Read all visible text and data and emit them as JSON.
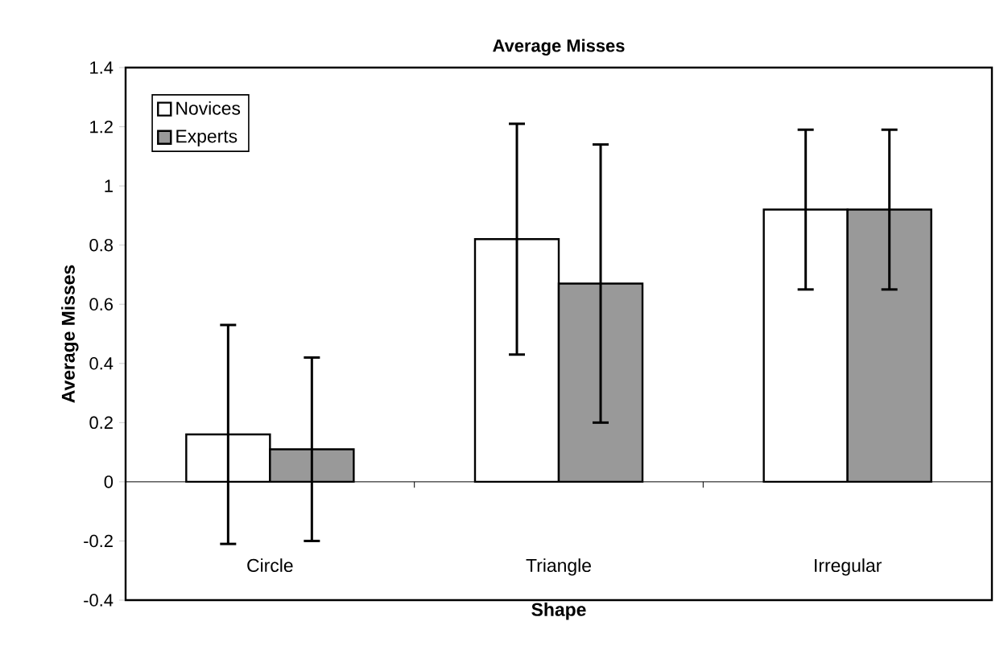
{
  "chart_data": {
    "type": "bar",
    "title": "Average Misses",
    "xlabel": "Shape",
    "ylabel": "Average Misses",
    "categories": [
      "Circle",
      "Triangle",
      "Irregular"
    ],
    "series": [
      {
        "name": "Novices",
        "color": "#ffffff",
        "values": [
          0.16,
          0.82,
          0.92
        ],
        "errors": [
          0.37,
          0.39,
          0.27
        ]
      },
      {
        "name": "Experts",
        "color": "#999999",
        "values": [
          0.11,
          0.67,
          0.92
        ],
        "errors": [
          0.31,
          0.47,
          0.27
        ]
      }
    ],
    "ylim": [
      -0.4,
      1.4
    ],
    "yticks": [
      -0.4,
      -0.2,
      0,
      0.2,
      0.4,
      0.6,
      0.8,
      1,
      1.2,
      1.4
    ],
    "legend": "top left"
  }
}
